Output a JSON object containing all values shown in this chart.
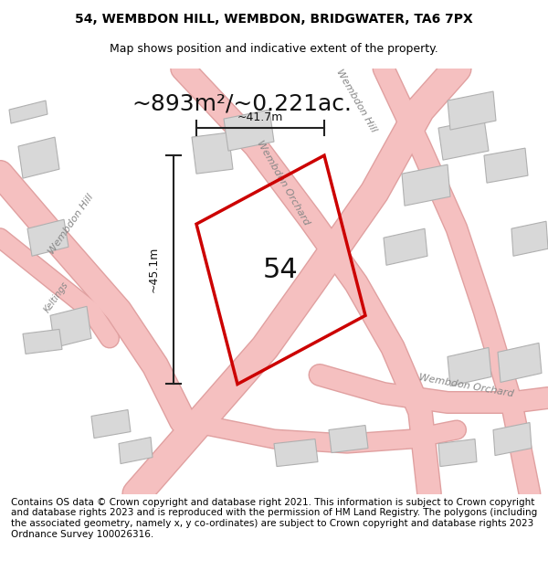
{
  "title_line1": "54, WEMBDON HILL, WEMBDON, BRIDGWATER, TA6 7PX",
  "title_line2": "Map shows position and indicative extent of the property.",
  "area_label": "~893m²/~0.221ac.",
  "property_number": "54",
  "dim_horizontal": "~41.7m",
  "dim_vertical": "~45.1m",
  "footer_text": "Contains OS data © Crown copyright and database right 2021. This information is subject to Crown copyright and database rights 2023 and is reproduced with the permission of HM Land Registry. The polygons (including the associated geometry, namely x, y co-ordinates) are subject to Crown copyright and database rights 2023 Ordnance Survey 100026316.",
  "bg_color": "#ffffff",
  "map_bg": "#f5f0f0",
  "road_color_light": "#f5c0c0",
  "road_color_outline": "#e08080",
  "building_color": "#d8d8d8",
  "building_outline": "#aaaaaa",
  "property_outline_color": "#cc0000",
  "dim_line_color": "#222222",
  "title_fontsize": 10,
  "subtitle_fontsize": 9,
  "area_fontsize": 18,
  "num_fontsize": 22,
  "footer_fontsize": 7.5,
  "street_label_color": "#888888",
  "street_label_fontsize": 8
}
